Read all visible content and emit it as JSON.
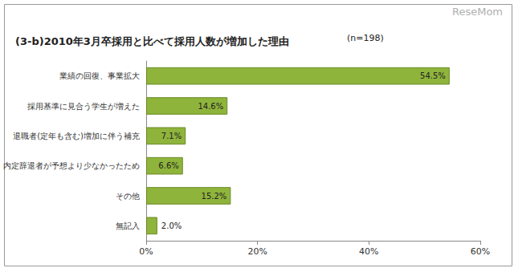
{
  "chart_data": {
    "type": "bar",
    "orientation": "horizontal",
    "title": "(3-b)2010年3月卒採用と比べて採用人数が増加した理由",
    "annotations": [
      "(n=198)",
      "ReseMom"
    ],
    "categories": [
      "業績の回復、事業拡大",
      "採用基準に見合う学生が増えた",
      "退職者(定年も含む)増加に伴う補充",
      "内定辞退者が予想より少なかったため",
      "その他",
      "無記入"
    ],
    "values": [
      54.5,
      14.6,
      7.1,
      6.6,
      15.2,
      2.0
    ],
    "value_labels": [
      "54.5%",
      "14.6%",
      "7.1%",
      "6.6%",
      "15.2%",
      "2.0%"
    ],
    "color": "#8fb43c",
    "xlim": [
      0,
      60
    ],
    "xticks": [
      {
        "value": 0,
        "label": "0%"
      },
      {
        "value": 20,
        "label": "20%"
      },
      {
        "value": 40,
        "label": "40%"
      },
      {
        "value": 60,
        "label": "60%"
      }
    ],
    "grid": false,
    "data_labels": true
  }
}
